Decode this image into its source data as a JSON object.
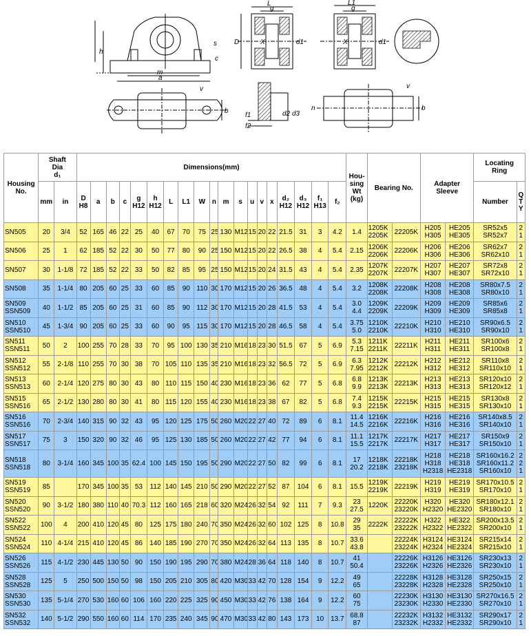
{
  "drawing": {
    "labels": [
      "h",
      "c",
      "s",
      "m",
      "a",
      "L",
      "g",
      "D",
      "X",
      "d1",
      "L1",
      "g",
      "X",
      "d1",
      "v",
      "b",
      "f1",
      "f2",
      "d2",
      "d3",
      "v",
      "b",
      "n"
    ]
  },
  "table": {
    "header_top": [
      "Housing No.",
      "Shaft\nDia\nd₁",
      "Dimensions(mm)",
      "Hou-\nsing\nWt\n(kg)",
      "Bearing No.",
      "Adapter\nSleeve",
      "Locating\nRing"
    ],
    "header_sub": [
      "mm",
      "in",
      "D\nH8",
      "a",
      "b",
      "c",
      "g\nH12",
      "h\nH12",
      "L",
      "L1",
      "W",
      "n",
      "m",
      "s",
      "u",
      "v",
      "x",
      "d₂\nH12",
      "d₃\nH12",
      "f₁\nH13",
      "f₂",
      "Number",
      "Q\nT\nY"
    ],
    "rows": [
      {
        "color": "#fff799",
        "cells": [
          "SN505",
          "20",
          "3/4",
          "52",
          "165",
          "46",
          "22",
          "25",
          "40",
          "67",
          "70",
          "75",
          "25",
          "130",
          "M12",
          "15",
          "20",
          "22",
          "21.5",
          "31",
          "3",
          "4.2",
          "1.4",
          "1205K\n2205K",
          "22205K",
          "H205\nH305",
          "HE205\nHE305",
          "SR52x5\nSR52x7",
          "2\n1"
        ]
      },
      {
        "color": "#fff799",
        "cells": [
          "SN506",
          "25",
          "1",
          "62",
          "185",
          "52",
          "22",
          "30",
          "50",
          "77",
          "80",
          "90",
          "25",
          "150",
          "M12",
          "15",
          "20",
          "22",
          "26.5",
          "38",
          "4",
          "5.4",
          "2.15",
          "1206K\n2206K",
          "22206K",
          "H206\nH306",
          "HE206\nHE306",
          "SR62x7\nSR62x10",
          "2\n1"
        ]
      },
      {
        "color": "#fff799",
        "cells": [
          "SN507",
          "30",
          "1-1/8",
          "72",
          "185",
          "52",
          "22",
          "33",
          "50",
          "82",
          "85",
          "95",
          "25",
          "150",
          "M12",
          "15",
          "20",
          "24",
          "31.5",
          "43",
          "4",
          "5.4",
          "2.35",
          "1207K\n2207K",
          "22207K",
          "H207\nH307",
          "HE207\nHE307",
          "SR72x8\nSR72x10",
          "2\n1"
        ]
      },
      {
        "color": "#9fcdf7",
        "cells": [
          "SN508",
          "35",
          "1-1/4",
          "80",
          "205",
          "60",
          "25",
          "33",
          "60",
          "85",
          "90",
          "110",
          "30",
          "170",
          "M12",
          "15",
          "20",
          "26",
          "36.5",
          "48",
          "4",
          "5.4",
          "3.2",
          "1208K\n2208K",
          "22208K",
          "H208\nH308",
          "HE208\nHE308",
          "SR80x7.5\nSR80x10",
          "2\n1"
        ]
      },
      {
        "color": "#9fcdf7",
        "cells": [
          "SN509\nSSN509",
          "40",
          "1-1/2",
          "85",
          "205",
          "60",
          "25",
          "31",
          "60",
          "85",
          "90",
          "112",
          "30",
          "170",
          "M12",
          "15",
          "20",
          "28",
          "41.5",
          "53",
          "4",
          "5.4",
          "3.0\n4.4",
          "1209K\n2209K",
          "22209K",
          "H209\nH309",
          "HE209\nHE309",
          "SR85x6\nSR85x8",
          "2\n1"
        ]
      },
      {
        "color": "#9fcdf7",
        "cells": [
          "SN510\nSSN510",
          "45",
          "1-3/4",
          "90",
          "205",
          "60",
          "25",
          "33",
          "60",
          "90",
          "95",
          "115",
          "30",
          "170",
          "M12",
          "15",
          "20",
          "28",
          "46.5",
          "58",
          "4",
          "5.4",
          "3.75\n5.0",
          "1210K\n2210K",
          "22210K",
          "H210\nH310",
          "HE210\nHE310",
          "SR90x6.5\nSR90x10",
          "2\n1"
        ]
      },
      {
        "color": "#fff799",
        "cells": [
          "SN511\nSSN511",
          "50",
          "2",
          "100",
          "255",
          "70",
          "28",
          "33",
          "70",
          "95",
          "100",
          "130",
          "35",
          "210",
          "M16",
          "18",
          "23",
          "30",
          "51.5",
          "67",
          "5",
          "6.9",
          "5.3\n7.15",
          "1211K\n2211K",
          "22211K",
          "H211\nH311",
          "HE211\nHE311",
          "SR100x6\nSR100x8",
          "2\n1"
        ]
      },
      {
        "color": "#fff799",
        "cells": [
          "SN512\nSSN512",
          "55",
          "2-1/8",
          "110",
          "255",
          "70",
          "30",
          "38",
          "70",
          "105",
          "110",
          "135",
          "35",
          "210",
          "M16",
          "18",
          "23",
          "32",
          "56.5",
          "72",
          "5",
          "6.9",
          "6.3\n7.95",
          "1212K\n2212K",
          "22212K",
          "H212\nH312",
          "HE212\nHE312",
          "SR110x8\nSR110x10",
          "2\n1"
        ]
      },
      {
        "color": "#fff799",
        "cells": [
          "SN513\nSSN513",
          "60",
          "2-1/4",
          "120",
          "275",
          "80",
          "30",
          "43",
          "80",
          "110",
          "115",
          "150",
          "40",
          "230",
          "M16",
          "18",
          "23",
          "36",
          "62",
          "77",
          "5",
          "6.8",
          "6.8\n9.9",
          "1213K\n2213K",
          "22213K",
          "H213\nH313",
          "HE213\nHE313",
          "SR120x10\nSR120x12",
          "2\n1"
        ]
      },
      {
        "color": "#fff799",
        "cells": [
          "SN515\nSSN516",
          "65",
          "2-1/2",
          "130",
          "280",
          "80",
          "30",
          "41",
          "80",
          "115",
          "120",
          "155",
          "40",
          "230",
          "M16",
          "18",
          "23",
          "38",
          "67",
          "82",
          "5",
          "6.8",
          "7.4\n9.3",
          "1215K\n2215K",
          "22215K",
          "H215\nH315",
          "HE215\nHE315",
          "SR130x8\nSR130x10",
          "2\n1"
        ]
      },
      {
        "color": "#9fcdf7",
        "cells": [
          "SN516\nSSN516",
          "70",
          "2-3/4",
          "140",
          "315",
          "90",
          "32",
          "43",
          "95",
          "120",
          "125",
          "175",
          "50",
          "260",
          "M20",
          "22",
          "27",
          "40",
          "72",
          "89",
          "6",
          "8.1",
          "11.4\n14.5",
          "1216K\n2216K",
          "22216K",
          "H216\nH316",
          "HE216\nHE316",
          "SR140x8.5\nSR140x10",
          "2\n1"
        ]
      },
      {
        "color": "#9fcdf7",
        "cells": [
          "SN517\nSSN517",
          "75",
          "3",
          "150",
          "320",
          "90",
          "32",
          "46",
          "95",
          "125",
          "130",
          "185",
          "50",
          "260",
          "M20",
          "22",
          "27",
          "42",
          "77",
          "94",
          "6",
          "8.1",
          "11.1\n15.5",
          "1217K\n2217K",
          "22217K",
          "H217\nH317",
          "HE217\nHE317",
          "SR150x9\nSR150x10",
          "2\n1"
        ]
      },
      {
        "color": "#9fcdf7",
        "cells": [
          "SN518\nSSN518",
          "80",
          "3-1/4",
          "160",
          "345",
          "100",
          "35",
          "62.4",
          "100",
          "145",
          "150",
          "195",
          "50",
          "290",
          "M20",
          "22",
          "27",
          "50",
          "82",
          "99",
          "6",
          "8.1",
          "17\n20.2",
          "1218K\n2218K",
          "22218K\n23218K",
          "H218\nH318\nH2318",
          "HE218\nHE318\nHE2318",
          "SR160x16.2\nSR160x11.2\nSR160x10",
          "2\n2\n1"
        ]
      },
      {
        "color": "#fff799",
        "cells": [
          "SN519\nSSN519",
          "85",
          null,
          "170",
          "345",
          "100",
          "35",
          "53",
          "112",
          "140",
          "145",
          "210",
          "50",
          "290",
          "M20",
          "22",
          "27",
          "52",
          "87",
          "104",
          "6",
          "8.1",
          "15.5",
          "1219K\n2219K",
          "22219K",
          "H219\nH319",
          "HE219\nHE319",
          "SR170x10.5\nSR170x10",
          "2\n1"
        ]
      },
      {
        "color": "#fff799",
        "cells": [
          "SN520\nSSN520",
          "90",
          "3-1/2",
          "180",
          "380",
          "110",
          "40",
          "70.3",
          "112",
          "160",
          "165",
          "218",
          "60",
          "320",
          "M24",
          "26",
          "32",
          "54",
          "92",
          "111",
          "7",
          "9.3",
          "23\n27.5",
          "1220K",
          "22220K\n23220K",
          "H320\nH2320",
          "HE320\nHE2320",
          "SR180x12.1\nSR180x10",
          "2\n1"
        ]
      },
      {
        "color": "#fff799",
        "cells": [
          "SN522\nSSN522",
          "100",
          "4",
          "200",
          "410",
          "120",
          "45",
          "80",
          "125",
          "175",
          "180",
          "240",
          "70",
          "350",
          "M24",
          "26",
          "32",
          "60",
          "102",
          "125",
          "8",
          "10.8",
          "29\n35",
          "2222K",
          "22222K\n23222K",
          "H322\nH2322",
          "HE322\nHE2322",
          "SR200x13.5\nSR200x10",
          "2\n1"
        ]
      },
      {
        "color": "#fff799",
        "cells": [
          "SN524\nSSN524",
          "110",
          "4-1/4",
          "215",
          "410",
          "120",
          "45",
          "86",
          "140",
          "185",
          "190",
          "270",
          "70",
          "350",
          "M24",
          "26",
          "32",
          "64",
          "113",
          "135",
          "8",
          "10.7",
          "33.6\n43.8",
          null,
          "22224K\n23224K",
          "H3124\nH2324",
          "HE3124\nHE2324",
          "SR215x14\nSR215x10",
          "2\n1"
        ]
      },
      {
        "color": "#9fcdf7",
        "cells": [
          "SN526\nSSN526",
          "115",
          "4-1/2",
          "230",
          "445",
          "130",
          "50",
          "90",
          "150",
          "190",
          "195",
          "290",
          "70",
          "380",
          "M24",
          "28",
          "36",
          "64",
          "118",
          "140",
          "8",
          "10.7",
          "41\n50.4",
          null,
          "22226K\n23226K",
          "H3126\nH2326",
          "HE3126\nHE2326",
          "SR230x13\nSR230x10",
          "2\n1"
        ]
      },
      {
        "color": "#9fcdf7",
        "cells": [
          "SN528\nSSN528",
          "125",
          "5",
          "250",
          "500",
          "150",
          "50",
          "98",
          "150",
          "205",
          "210",
          "305",
          "80",
          "420",
          "M30",
          "33",
          "42",
          "70",
          "128",
          "154",
          "9",
          "12.2",
          "49\n65",
          null,
          "22228K\n23228K",
          "H3128\nH2328",
          "HE3128\nHE2328",
          "SR250x15\nSR250x10",
          "2\n1"
        ]
      },
      {
        "color": "#9fcdf7",
        "cells": [
          "SN530\nSSN530",
          "135",
          "5-1/4",
          "270",
          "530",
          "160",
          "60",
          "106",
          "160",
          "220",
          "225",
          "325",
          "90",
          "450",
          "M30",
          "33",
          "42",
          "76",
          "138",
          "164",
          "9",
          "12.2",
          "60\n75",
          null,
          "22230K\n23230K",
          "H3130\nH2330",
          "HE3130\nHE2330",
          "SR270x16.5\nSR270x10",
          "2\n1"
        ]
      },
      {
        "color": "#9fcdf7",
        "cells": [
          "SN532\nSSN532",
          "140",
          "5-1/2",
          "290",
          "550",
          "160",
          "60",
          "114",
          "170",
          "235",
          "240",
          "345",
          "90",
          "470",
          "M30",
          "33",
          "42",
          "80",
          "143",
          "173",
          "10",
          "13.7",
          "68.8\n87",
          null,
          "22232K\n23232K",
          "H3132\nH2332",
          "HE3132\nHE2332",
          "SR290x17\nSR290x10",
          "2\n1"
        ]
      }
    ]
  }
}
